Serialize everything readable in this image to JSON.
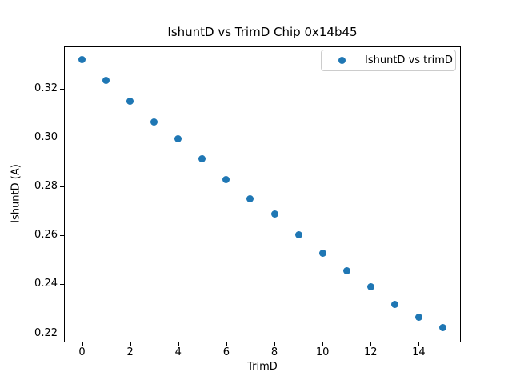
{
  "figure": {
    "background": "#ffffff"
  },
  "chart_data": {
    "type": "scatter",
    "title": "IshuntD vs TrimD Chip 0x14b45",
    "xlabel": "TrimD",
    "ylabel": "IshuntD (A)",
    "grid": false,
    "legend": {
      "position": "upper right",
      "entries": [
        {
          "label": "IshuntD vs trimD",
          "marker": "circle",
          "color": "#1f77b4"
        }
      ]
    },
    "series": [
      {
        "name": "IshuntD vs trimD",
        "color": "#1f77b4",
        "x": [
          0,
          1,
          2,
          3,
          4,
          5,
          6,
          7,
          8,
          9,
          10,
          11,
          12,
          13,
          14,
          15
        ],
        "y": [
          0.332,
          0.3235,
          0.3151,
          0.3064,
          0.2997,
          0.2913,
          0.283,
          0.2749,
          0.2688,
          0.2602,
          0.2526,
          0.2456,
          0.2391,
          0.2318,
          0.2267,
          0.2222
        ]
      }
    ],
    "x_ticks": {
      "values": [
        0,
        2,
        4,
        6,
        8,
        10,
        12,
        14
      ],
      "labels": [
        "0",
        "2",
        "4",
        "6",
        "8",
        "10",
        "12",
        "14"
      ]
    },
    "y_ticks": {
      "values": [
        0.22,
        0.24,
        0.26,
        0.28,
        0.3,
        0.32
      ],
      "labels": [
        "0.22",
        "0.24",
        "0.26",
        "0.28",
        "0.30",
        "0.32"
      ]
    },
    "xlim": [
      -0.75,
      15.75
    ],
    "ylim": [
      0.2165,
      0.3375
    ],
    "axis_color": "#000000",
    "text_color": "#000000"
  }
}
